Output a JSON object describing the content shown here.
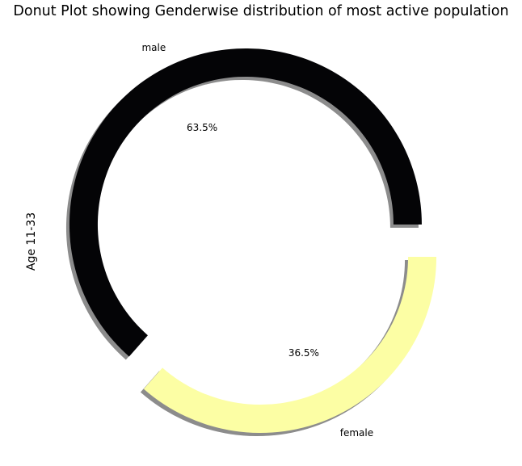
{
  "chart_data": {
    "type": "pie",
    "subtype": "donut",
    "title": "Donut Plot showing Genderwise distribution of most active population",
    "ylabel": "Age 11-33",
    "categories": [
      "male",
      "female"
    ],
    "values": [
      63.5,
      36.5
    ],
    "percent_labels": [
      "63.5%",
      "36.5%"
    ],
    "colors": [
      "#040406",
      "#fcfea4"
    ],
    "shadow": true,
    "exploded": true
  }
}
